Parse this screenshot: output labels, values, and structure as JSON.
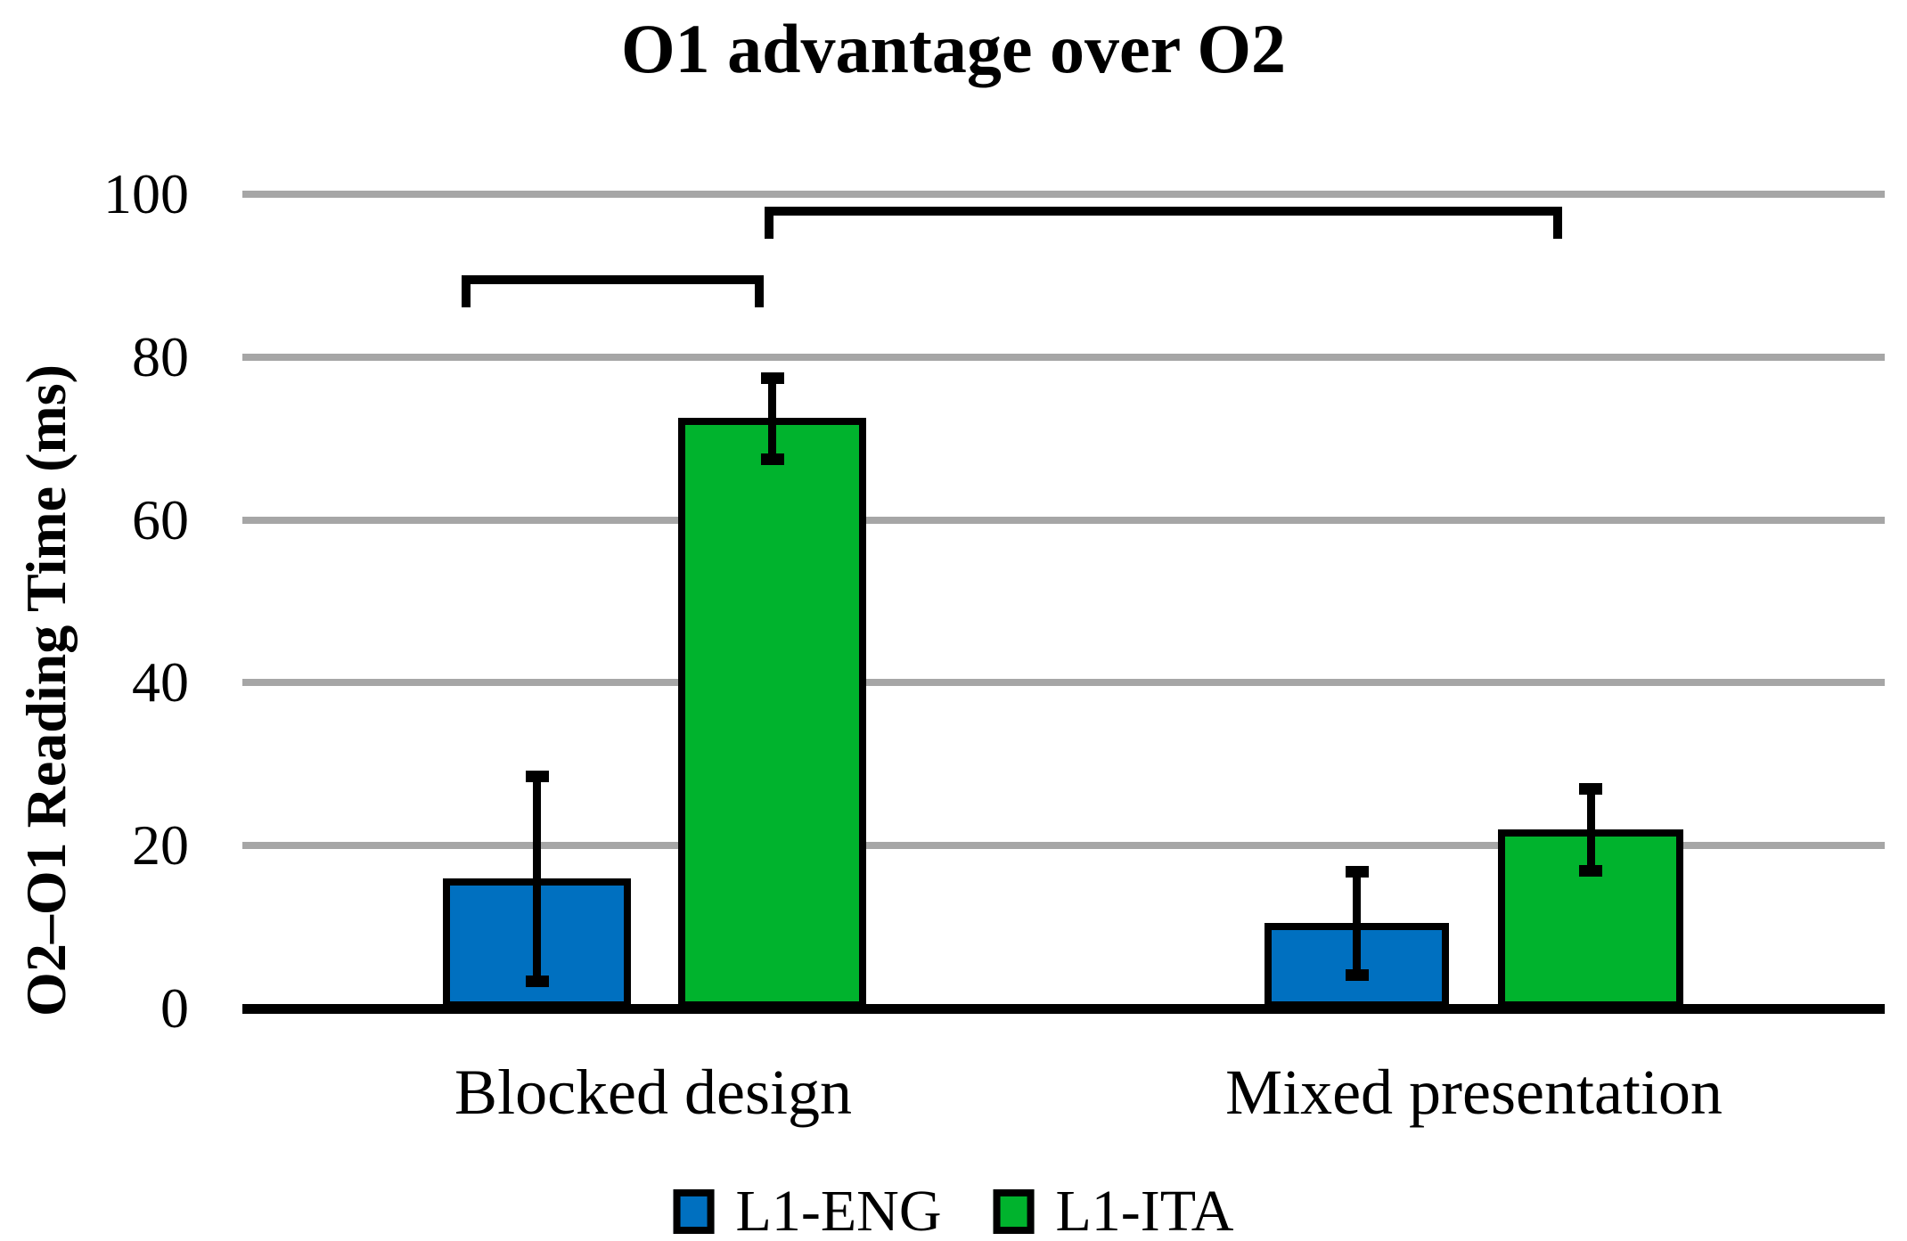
{
  "chart_data": {
    "type": "bar",
    "title": "O1 advantage over O2",
    "ylabel": "O2–O1 Reading Time (ms)",
    "xlabel": "",
    "categories": [
      "Blocked design",
      "Mixed presentation"
    ],
    "series": [
      {
        "name": "L1-ENG",
        "color": "#0070C0",
        "values": [
          16,
          10.5
        ],
        "errors": [
          12.6,
          6.3
        ]
      },
      {
        "name": "L1-ITA",
        "color": "#00B32D",
        "values": [
          72.5,
          22
        ],
        "errors": [
          5,
          5
        ]
      }
    ],
    "ylim": [
      0,
      100
    ],
    "yticks": [
      0,
      20,
      40,
      60,
      80,
      100
    ],
    "grid": "horizontal",
    "gridline_color": "#A6A6A6",
    "axis_color": "#000000",
    "legend_position": "bottom",
    "significance_brackets": [
      {
        "connects": [
          "Blocked design: L1-ENG",
          "Blocked design: L1-ITA"
        ],
        "y": 90
      },
      {
        "connects": [
          "Blocked design: L1-ITA",
          "Mixed presentation: L1-ITA"
        ],
        "y": 98.5
      }
    ]
  }
}
